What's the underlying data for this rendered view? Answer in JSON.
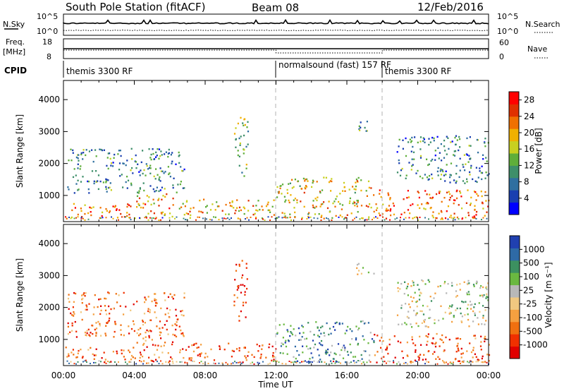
{
  "title": "South Pole Station (fitACF)",
  "beam": "Beam 08",
  "date": "12/Feb/2016",
  "colors": {
    "power_scale": [
      "#0000ff",
      "#1a3fb0",
      "#2f6fa0",
      "#3e8f6a",
      "#5fae3a",
      "#c8d020",
      "#f0b000",
      "#f07000",
      "#e03000",
      "#ff0000"
    ],
    "velocity_scale": [
      "#2040b0",
      "#2e6aa6",
      "#3c9060",
      "#6ab840",
      "#b8b8b8",
      "#f0c880",
      "#f5a040",
      "#f07010",
      "#f03000",
      "#e00000"
    ],
    "dashed_line": "#b0b0b0"
  },
  "top_panels": {
    "nsky_label": "N.Sky",
    "nsky_ticks": [
      "10^5",
      "10^0"
    ],
    "nsearch_label": "N.Search",
    "nsearch_ticks": [
      "10^5",
      "10^0"
    ],
    "freq_label_line1": "Freq.",
    "freq_label_line2": "[MHz]",
    "freq_ticks": [
      "18",
      "8"
    ],
    "nave_label": "Nave",
    "nave_ticks": [
      "60",
      "0"
    ],
    "cpid_label": "CPID",
    "cpid_segments": [
      {
        "label": "themis 3300 RF",
        "start_hour": 0
      },
      {
        "label": "normalsound (fast) 157 RF",
        "start_hour": 12
      },
      {
        "label": "themis 3300 RF",
        "start_hour": 18
      }
    ]
  },
  "x_axis": {
    "label": "Time UT",
    "ticks": [
      "00:00",
      "04:00",
      "08:00",
      "12:00",
      "16:00",
      "20:00",
      "00:00"
    ],
    "dashed_hours": [
      12,
      18
    ]
  },
  "chart_data": [
    {
      "type": "heatmap",
      "name": "power",
      "ylabel": "Slant Range [km]",
      "y_ticks": [
        "1000",
        "2000",
        "3000",
        "4000"
      ],
      "ylim": [
        180,
        4600
      ],
      "xlim_hours": [
        0,
        24
      ],
      "colorbar_label": "Power [dB]",
      "colorbar_ticks": [
        "4",
        "8",
        "12",
        "16",
        "20",
        "24",
        "28"
      ],
      "colorbar_range": [
        0,
        30
      ],
      "echo_regions": [
        {
          "t0": 0.1,
          "t1": 4.0,
          "r0": 300,
          "r1": 800,
          "level": 0.75
        },
        {
          "t0": 4.0,
          "t1": 6.3,
          "r0": 300,
          "r1": 1100,
          "level": 0.7
        },
        {
          "t0": 6.5,
          "t1": 12.0,
          "r0": 300,
          "r1": 900,
          "level": 0.65
        },
        {
          "t0": 12.0,
          "t1": 17.5,
          "r0": 300,
          "r1": 1600,
          "level": 0.6
        },
        {
          "t0": 17.5,
          "t1": 24.0,
          "r0": 300,
          "r1": 1200,
          "level": 0.8
        },
        {
          "t0": 0.2,
          "t1": 6.8,
          "r0": 1100,
          "r1": 2500,
          "level": 0.3
        },
        {
          "t0": 9.6,
          "t1": 10.4,
          "r0": 1600,
          "r1": 3500,
          "level": 0.45
        },
        {
          "t0": 18.8,
          "t1": 24.0,
          "r0": 1400,
          "r1": 2900,
          "level": 0.3
        },
        {
          "t0": 16.5,
          "t1": 17.5,
          "r0": 3000,
          "r1": 3400,
          "level": 0.35
        }
      ]
    },
    {
      "type": "heatmap",
      "name": "velocity",
      "ylabel": "Slant Range [km]",
      "y_ticks": [
        "1000",
        "2000",
        "3000",
        "4000"
      ],
      "ylim": [
        180,
        4600
      ],
      "xlim_hours": [
        0,
        24
      ],
      "colorbar_label": "Velocity [m s⁻¹]",
      "colorbar_ticks": [
        "1000",
        "500",
        "100",
        "25",
        "-25",
        "-100",
        "-500",
        "-1000"
      ],
      "echo_regions": [
        {
          "t0": 0.1,
          "t1": 4.0,
          "r0": 300,
          "r1": 800,
          "level": 0.8
        },
        {
          "t0": 4.0,
          "t1": 6.3,
          "r0": 300,
          "r1": 1100,
          "level": 0.8
        },
        {
          "t0": 6.5,
          "t1": 12.0,
          "r0": 300,
          "r1": 900,
          "level": 0.82
        },
        {
          "t0": 12.0,
          "t1": 17.5,
          "r0": 300,
          "r1": 1600,
          "level": 0.25
        },
        {
          "t0": 17.5,
          "t1": 24.0,
          "r0": 300,
          "r1": 1200,
          "level": 0.82
        },
        {
          "t0": 0.2,
          "t1": 6.8,
          "r0": 1100,
          "r1": 2500,
          "level": 0.75
        },
        {
          "t0": 9.6,
          "t1": 10.4,
          "r0": 1600,
          "r1": 3500,
          "level": 0.9
        },
        {
          "t0": 18.8,
          "t1": 24.0,
          "r0": 1400,
          "r1": 2900,
          "level": 0.45
        },
        {
          "t0": 16.5,
          "t1": 17.5,
          "r0": 3000,
          "r1": 3400,
          "level": 0.45
        }
      ]
    }
  ]
}
